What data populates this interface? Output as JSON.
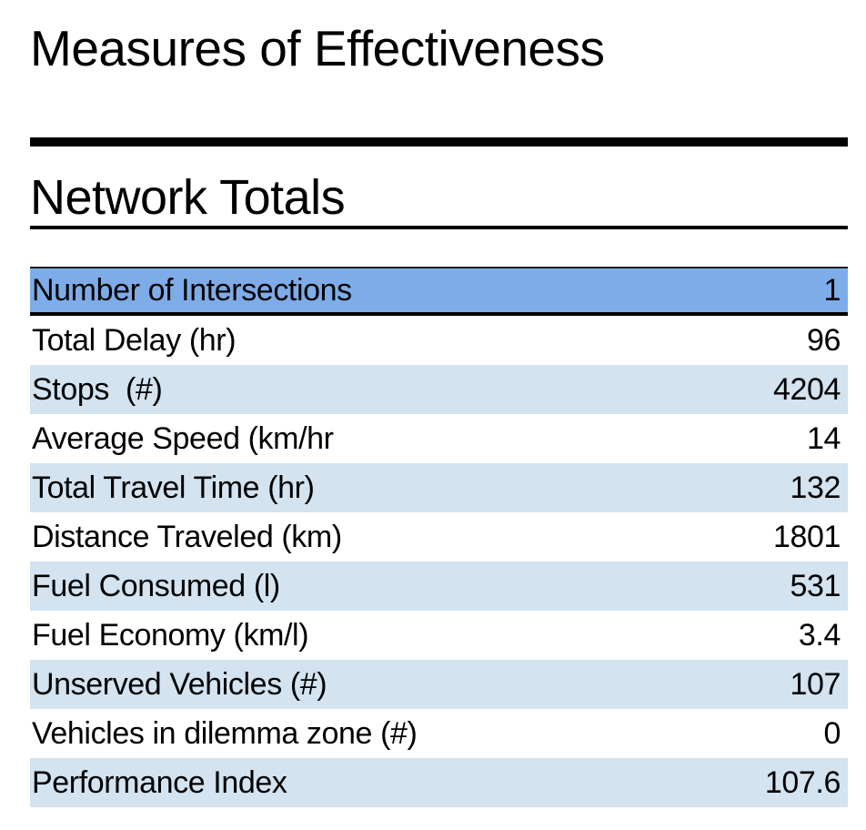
{
  "page": {
    "title": "Measures of Effectiveness",
    "section_title": "Network Totals"
  },
  "table": {
    "rows": [
      {
        "label": "Number of Intersections",
        "value": "1",
        "highlighted": true
      },
      {
        "label": "Total Delay (hr)",
        "value": "96",
        "highlighted": false
      },
      {
        "label": "Stops  (#)",
        "value": "4204",
        "highlighted": false
      },
      {
        "label": "Average Speed (km/hr",
        "value": "14",
        "highlighted": false
      },
      {
        "label": "Total Travel Time (hr)",
        "value": "132",
        "highlighted": false
      },
      {
        "label": "Distance Traveled (km)",
        "value": "1801",
        "highlighted": false
      },
      {
        "label": "Fuel Consumed (l)",
        "value": "531",
        "highlighted": false
      },
      {
        "label": "Fuel Economy (km/l)",
        "value": "3.4",
        "highlighted": false
      },
      {
        "label": "Unserved Vehicles (#)",
        "value": "107",
        "highlighted": false
      },
      {
        "label": "Vehicles in dilemma zone (#)",
        "value": "0",
        "highlighted": false
      },
      {
        "label": "Performance Index",
        "value": "107.6",
        "highlighted": false
      }
    ]
  },
  "colors": {
    "highlight_row_bg": "#7EACE8",
    "stripe_row_bg": "#D3E3EF",
    "rule_color": "#000000",
    "text_color": "#000000"
  }
}
